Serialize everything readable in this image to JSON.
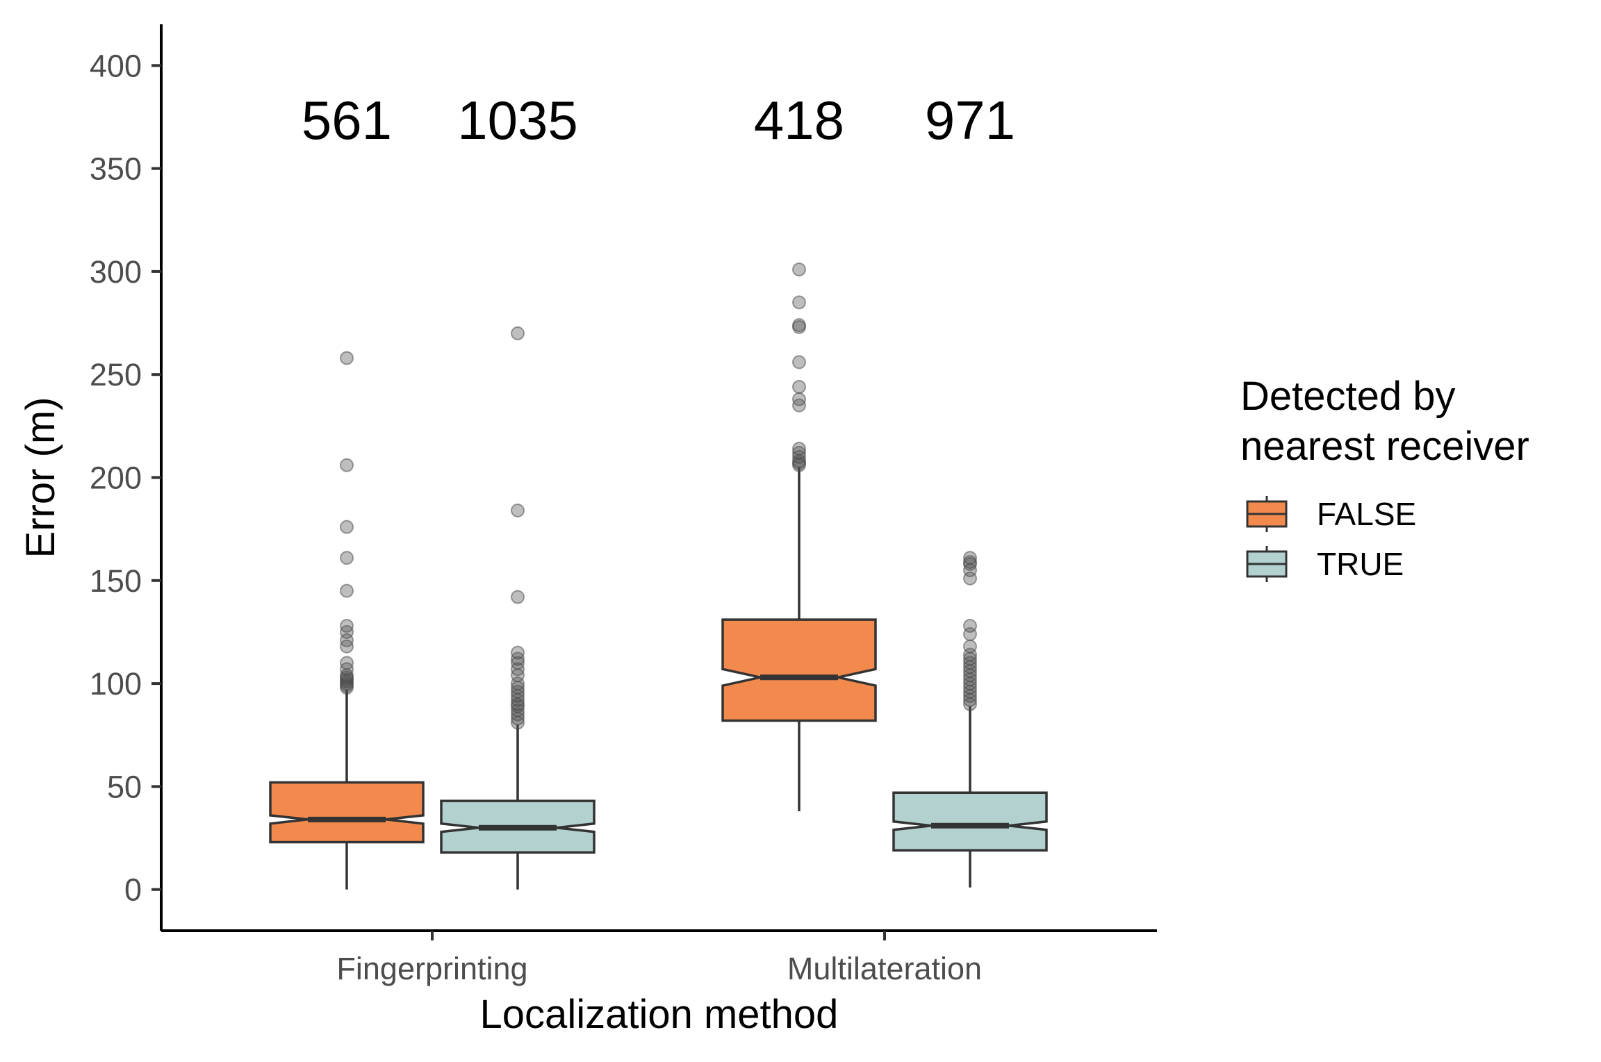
{
  "chart_data": {
    "type": "boxplot",
    "notched": true,
    "xlabel": "Localization method",
    "ylabel": "Error (m)",
    "ylim": [
      -20,
      420
    ],
    "yticks": [
      0,
      50,
      100,
      150,
      200,
      250,
      300,
      350,
      400
    ],
    "categories": [
      "Fingerprinting",
      "Multilateration"
    ],
    "legend": {
      "title_lines": [
        "Detected by",
        "nearest receiver"
      ],
      "position": "right"
    },
    "series": [
      {
        "name": "FALSE",
        "color": "#F28A4E",
        "boxes": [
          {
            "category": "Fingerprinting",
            "n": "561",
            "min": 0,
            "q1": 23,
            "median": 34,
            "q3": 52,
            "max": 97,
            "notch_low": 32,
            "notch_high": 36,
            "outliers": [
              98,
              99,
              100,
              101,
              102,
              103,
              104,
              107,
              110,
              118,
              121,
              125,
              128,
              145,
              161,
              176,
              206,
              258
            ]
          },
          {
            "category": "Multilateration",
            "n": "418",
            "min": 38,
            "q1": 82,
            "median": 103,
            "q3": 131,
            "max": 205,
            "notch_low": 99,
            "notch_high": 107,
            "outliers": [
              206,
              207,
              208,
              210,
              212,
              214,
              235,
              238,
              244,
              256,
              273,
              274,
              285,
              301
            ]
          }
        ]
      },
      {
        "name": "TRUE",
        "color": "#B2D1CF",
        "boxes": [
          {
            "category": "Fingerprinting",
            "n": "1035",
            "min": 0,
            "q1": 18,
            "median": 30,
            "q3": 43,
            "max": 80,
            "notch_low": 28,
            "notch_high": 32,
            "outliers": [
              81,
              83,
              85,
              87,
              89,
              90,
              92,
              94,
              96,
              98,
              100,
              104,
              107,
              110,
              112,
              115,
              142,
              184,
              270
            ]
          },
          {
            "category": "Multilateration",
            "n": "971",
            "min": 1,
            "q1": 19,
            "median": 31,
            "q3": 47,
            "max": 89,
            "notch_low": 29,
            "notch_high": 33,
            "outliers": [
              90,
              92,
              94,
              96,
              98,
              100,
              102,
              104,
              106,
              108,
              110,
              112,
              114,
              118,
              124,
              128,
              151,
              155,
              158,
              159,
              161
            ]
          }
        ]
      }
    ]
  }
}
